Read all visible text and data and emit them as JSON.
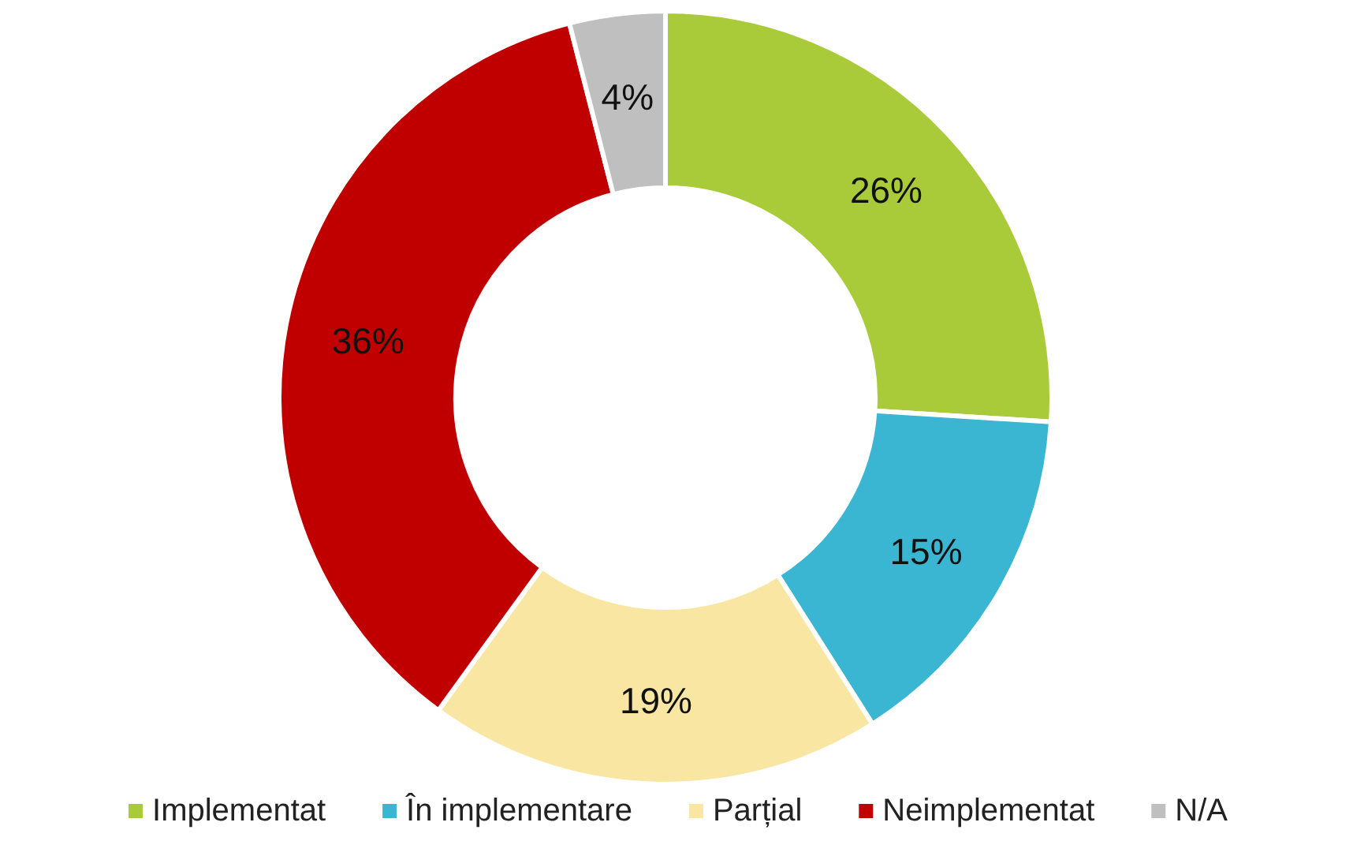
{
  "chart_data": {
    "type": "donut",
    "categories": [
      "Implementat",
      "În implementare",
      "Parțial",
      "Neimplementat",
      "N/A"
    ],
    "values": [
      26,
      15,
      19,
      36,
      4
    ],
    "value_labels": [
      "26%",
      "15%",
      "19%",
      "36%",
      "4%"
    ],
    "colors": [
      "#a9cb3a",
      "#3ab5d2",
      "#f8e6a2",
      "#c00000",
      "#bfbfbf"
    ],
    "legend": "bottom"
  }
}
